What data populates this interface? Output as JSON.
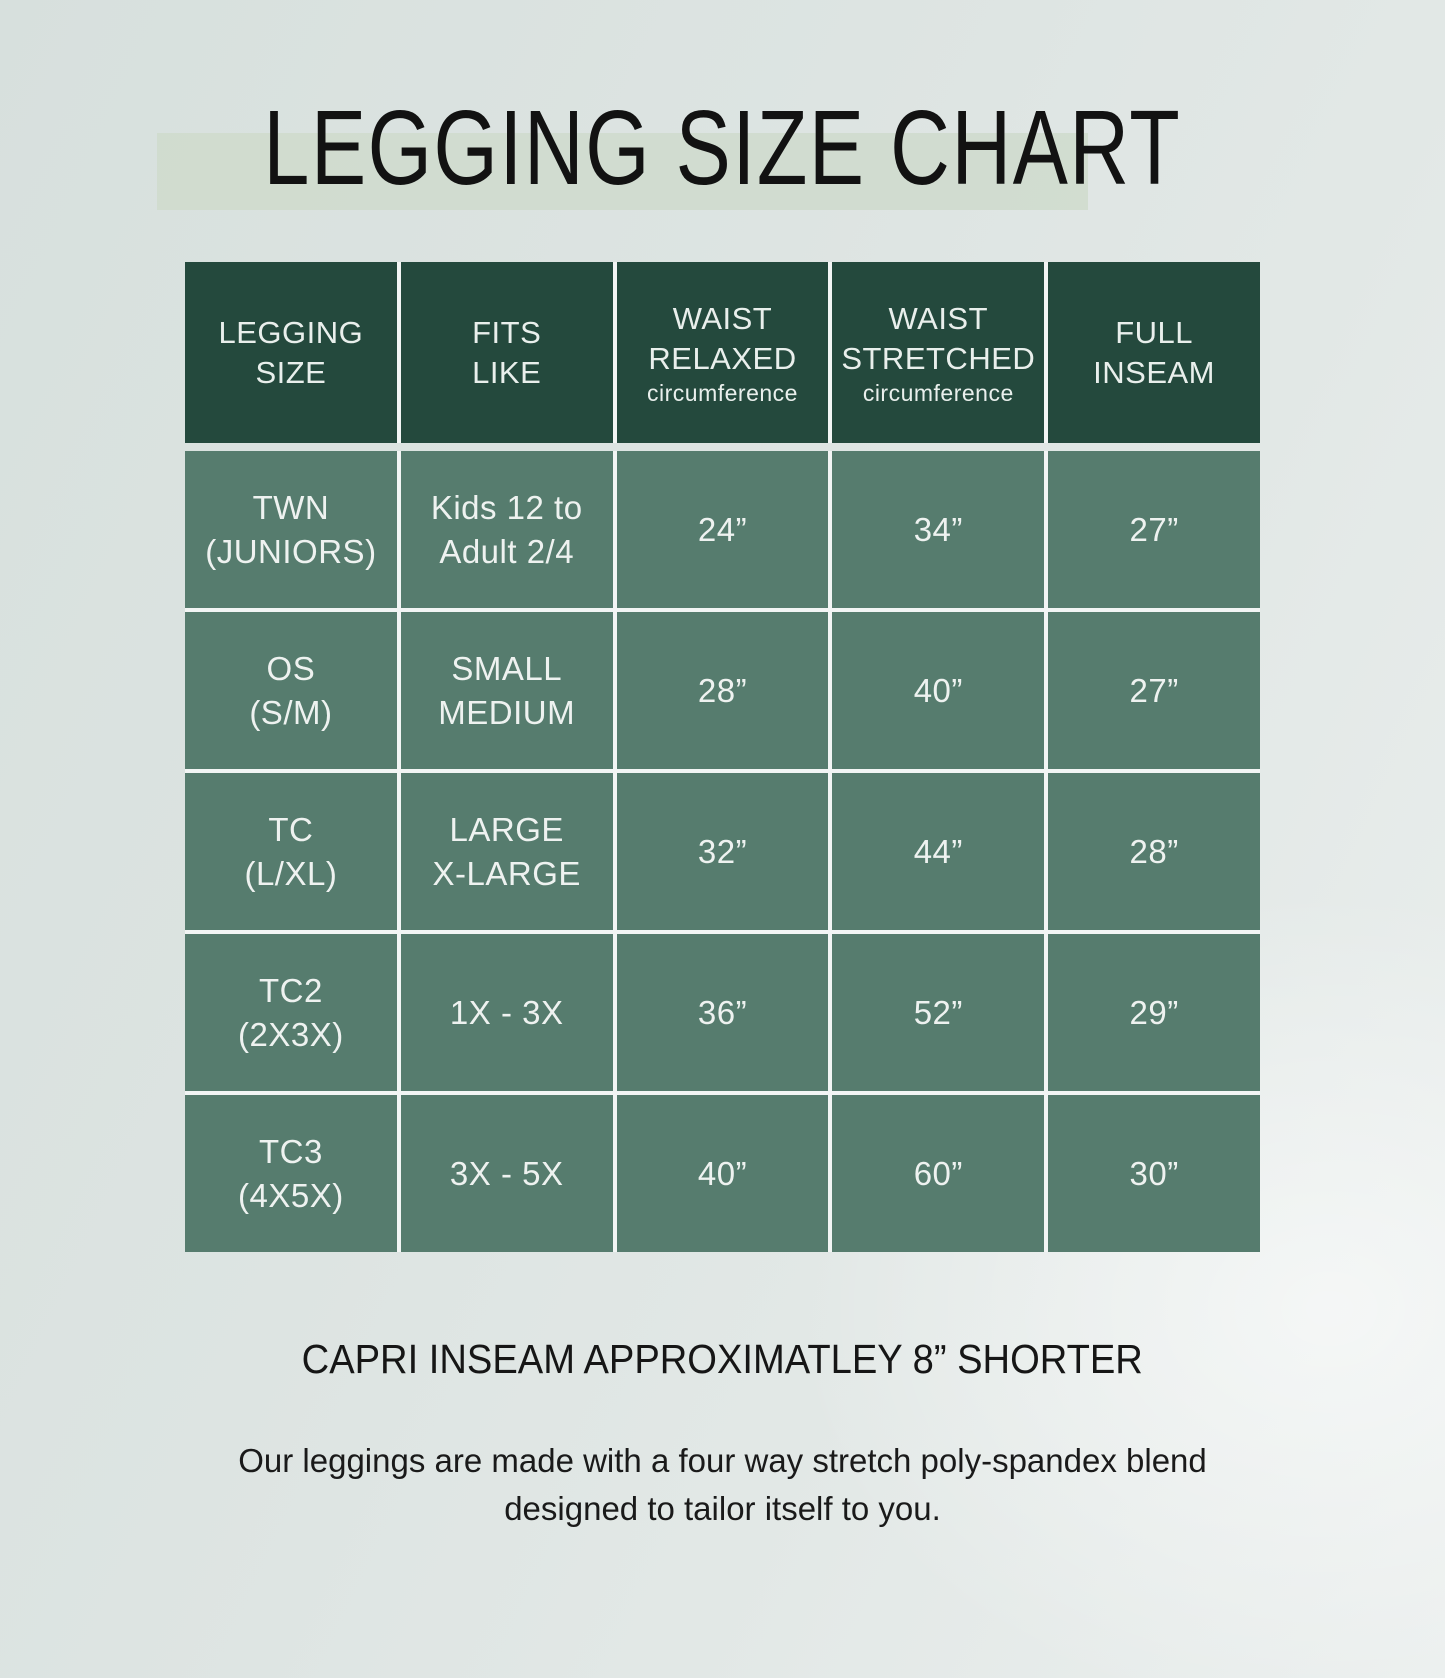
{
  "page": {
    "title": "LEGGING SIZE CHART",
    "capri_note": "CAPRI INSEAM APPROXIMATLEY 8” SHORTER",
    "description_line1": "Our leggings are made with a four way stretch poly-spandex blend",
    "description_line2": "designed to tailor itself to you."
  },
  "colors": {
    "header_green": "#24493d",
    "cell_green": "#567c6e",
    "title_band": "#cfdacd",
    "grid_line": "#f2f5f4",
    "background": "#dde4e2",
    "text_dark": "#161616",
    "text_light": "#eef2f0"
  },
  "chart_data": {
    "type": "table",
    "title": "LEGGING SIZE CHART",
    "header": {
      "size": {
        "line1": "LEGGING",
        "line2": "SIZE"
      },
      "fits": {
        "line1": "FITS",
        "line2": "LIKE"
      },
      "waist_relaxed": {
        "line1": "WAIST",
        "line2": "RELAXED",
        "sub": "circumference"
      },
      "waist_stretched": {
        "line1": "WAIST",
        "line2": "STRETCHED",
        "sub": "circumference"
      },
      "inseam": {
        "line1": "FULL",
        "line2": "INSEAM"
      }
    },
    "rows": [
      {
        "size": {
          "line1": "TWN",
          "line2": "(JUNIORS)"
        },
        "fits": {
          "line1": "Kids 12 to",
          "line2": "Adult 2/4"
        },
        "waist_relaxed": "24”",
        "waist_stretched": "34”",
        "full_inseam": "27”"
      },
      {
        "size": {
          "line1": "OS",
          "line2": "(S/M)"
        },
        "fits": {
          "line1": "SMALL",
          "line2": "MEDIUM"
        },
        "waist_relaxed": "28”",
        "waist_stretched": "40”",
        "full_inseam": "27”"
      },
      {
        "size": {
          "line1": "TC",
          "line2": "(L/XL)"
        },
        "fits": {
          "line1": "LARGE",
          "line2": "X-LARGE"
        },
        "waist_relaxed": "32”",
        "waist_stretched": "44”",
        "full_inseam": "28”"
      },
      {
        "size": {
          "line1": "TC2",
          "line2": "(2X3X)"
        },
        "fits": {
          "line1": "1X - 3X",
          "line2": ""
        },
        "waist_relaxed": "36”",
        "waist_stretched": "52”",
        "full_inseam": "29”"
      },
      {
        "size": {
          "line1": "TC3",
          "line2": "(4X5X)"
        },
        "fits": {
          "line1": "3X - 5X",
          "line2": ""
        },
        "waist_relaxed": "40”",
        "waist_stretched": "60”",
        "full_inseam": "30”"
      }
    ]
  }
}
